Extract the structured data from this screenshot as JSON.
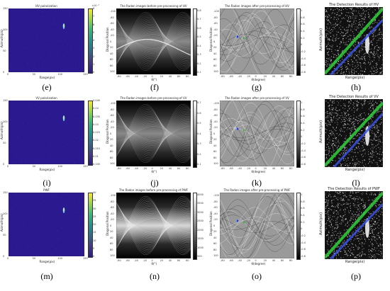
{
  "figure": {
    "rows": [
      {
        "col1": {
          "title": "HV polarization",
          "xlabel": "Range(pix)",
          "ylabel": "Azimuth(pix)",
          "caption": "(e)",
          "colorbar_label": "x10⁻³"
        },
        "col2": {
          "title": "The Radon images before pre-processing of HV",
          "xlabel": "θ(°)",
          "ylabel": "Diagonal Position",
          "caption": "(f)"
        },
        "col3": {
          "title": "The Radon images after pre-processing of HV",
          "xlabel": "θ(degree)",
          "ylabel": "Diagonal Position",
          "caption": "(g)"
        },
        "col4": {
          "title": "The Detection Results of HV",
          "xlabel": "Range(pix)",
          "ylabel": "Azimuth(pix)",
          "caption": "(h)"
        }
      },
      {
        "col1": {
          "title": "VV polarization",
          "xlabel": "Range(pix)",
          "ylabel": "Azimuth(pix)",
          "caption": "(i)",
          "colorbar_label": ""
        },
        "col2": {
          "title": "The Radon images before pre-processing of VV",
          "xlabel": "θ(°)",
          "ylabel": "Diagonal Position",
          "caption": "(j)"
        },
        "col3": {
          "title": "The Radon images after pre-processing of VV",
          "xlabel": "θ(degree)",
          "ylabel": "Diagonal Position",
          "caption": "(k)"
        },
        "col4": {
          "title": "The Detection Results of VV",
          "xlabel": "Range(pix)",
          "ylabel": "Azimuth(pix)",
          "caption": "(l)"
        }
      },
      {
        "col1": {
          "title": "PWF",
          "xlabel": "Range(pix)",
          "ylabel": "Azimuth(pix)",
          "caption": "(m)",
          "colorbar_label": ""
        },
        "col2": {
          "title": "The Radon images before pre-processing of PWF",
          "xlabel": "θ(°)",
          "ylabel": "Diagonal Position",
          "caption": "(n)"
        },
        "col3": {
          "title": "The Radon images after pre-processing of PWF",
          "xlabel": "θ(degree)",
          "ylabel": "Diagonal Position",
          "caption": "(o)"
        },
        "col4": {
          "title": "The Detection Results of PWF",
          "xlabel": "Range(pix)",
          "ylabel": "Azimuth(pix)",
          "caption": "(p)"
        }
      }
    ],
    "ticks": {
      "sar_x": [
        "0",
        "50",
        "100",
        "150"
      ],
      "sar_y": [
        "150",
        "100",
        "50",
        "0"
      ],
      "radon_x": [
        "-80",
        "-60",
        "-40",
        "-20",
        "0",
        "20",
        "40",
        "60",
        "80"
      ],
      "radon_y": [
        "-100",
        "-80",
        "-60",
        "-40",
        "-20",
        "0",
        "20",
        "40",
        "60",
        "80",
        "100"
      ],
      "colorbar_hv": [
        "8",
        "7",
        "6",
        "5",
        "4",
        "3",
        "2",
        "1",
        "0"
      ],
      "colorbar_vv": [
        "0.045",
        "0.04",
        "0.035",
        "0.03",
        "0.025",
        "0.02",
        "0.015",
        "0.01",
        "0.005"
      ],
      "colorbar_pwf": [
        "40",
        "35",
        "30",
        "25",
        "20",
        "15",
        "10",
        "5",
        "0"
      ],
      "colorbar_radon_f": [
        "0.8",
        "0.7",
        "0.6",
        "0.5",
        "0.4",
        "0.3",
        "0.2",
        "0.1"
      ],
      "colorbar_radon_j": [
        "0.7",
        "0.6",
        "0.5",
        "0.4",
        "0.3",
        "0.2",
        "0.1"
      ],
      "colorbar_radon_n": [
        "4000",
        "3500",
        "3000",
        "2500",
        "2000",
        "1500",
        "1000",
        "500"
      ],
      "colorbar_radon_after": [
        "1",
        "0.8",
        "0.6",
        "0.4",
        "0.2",
        "0",
        "-0.2",
        "-0.4",
        "-0.6",
        "-0.8"
      ]
    },
    "colors": {
      "sar_bg": "#2b1a8f",
      "viridis_top": "#fde725",
      "viridis_bottom": "#2b1a8f",
      "detect_line_green": "#2fd13a",
      "detect_line_blue": "#3a52e6",
      "marker_blue": "#1f3fd8",
      "marker_green": "#22c23a"
    }
  }
}
